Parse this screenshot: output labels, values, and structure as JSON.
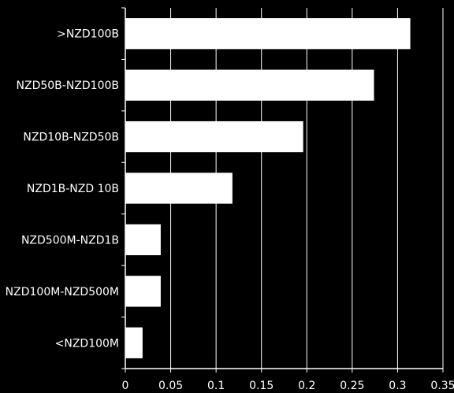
{
  "chart_data": {
    "type": "bar",
    "orientation": "horizontal",
    "title": "",
    "xlabel": "",
    "ylabel": "",
    "categories": [
      ">NZD100B",
      "NZD50B-NZD100B",
      "NZD10B-NZD50B",
      "NZD1B-NZD 10B",
      "NZD500M-NZD1B",
      "NZD100M-NZD500M",
      "<NZD100M"
    ],
    "values": [
      0.314,
      0.274,
      0.196,
      0.118,
      0.039,
      0.039,
      0.019
    ],
    "xlim": [
      0,
      0.35
    ],
    "x_ticks": [
      "0",
      "0.05",
      "0.1",
      "0.15",
      "0.2",
      "0.25",
      "0.3",
      "0.35"
    ],
    "grid": "vertical",
    "legend": "none",
    "colors": {
      "background": "#000000",
      "bar_fill": "#ffffff",
      "grid": "#ffffff",
      "text": "#ffffff"
    }
  }
}
